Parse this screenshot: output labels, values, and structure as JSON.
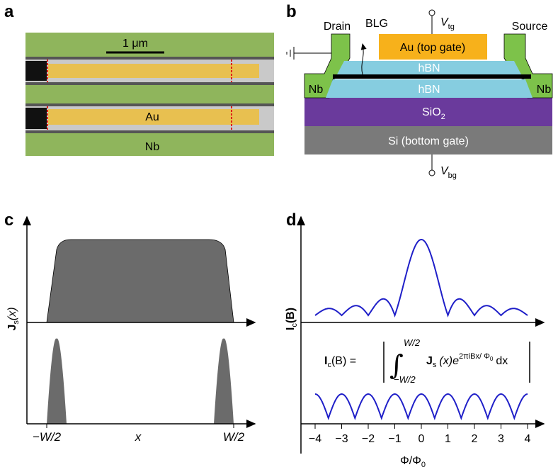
{
  "panels": {
    "a": {
      "label": "a",
      "scale_bar": "1 μm",
      "au": "Au",
      "nb": "Nb"
    },
    "b": {
      "label": "b",
      "drain": "Drain",
      "source": "Source",
      "blg": "BLG",
      "vtg": "V",
      "vtg_sub": "tg",
      "vbg": "V",
      "vbg_sub": "bg",
      "top_gate": "Au (top gate)",
      "hbn_top": "hBN",
      "hbn_bottom": "hBN",
      "nb_left": "Nb",
      "nb_right": "Nb",
      "sio2": "SiO",
      "sio2_sub": "2",
      "si": "Si (bottom gate)"
    },
    "c": {
      "label": "c",
      "ylabel": "J",
      "ylabel_sub": "s",
      "ylabel_arg": "(x)",
      "xticks": [
        "−W/2",
        "x",
        "W/2"
      ]
    },
    "d": {
      "label": "d",
      "ylabel": "I",
      "ylabel_sub": "c",
      "ylabel_arg": "(B)",
      "xlabel": "Φ/Φ",
      "xlabel_sub": "0",
      "xticks": [
        {
          "value": -4,
          "label": "−4"
        },
        {
          "value": -3,
          "label": "−3"
        },
        {
          "value": -2,
          "label": "−2"
        },
        {
          "value": -1,
          "label": "−1"
        },
        0,
        1,
        2,
        3,
        4
      ],
      "formula": {
        "lhs": "I",
        "lhs_sub": "c",
        "lhs_arg": "(B) =",
        "upper": "W/2",
        "lower": "−W/2",
        "integrand": "J",
        "integrand_sub": "s",
        "integrand_arg": "(x)e",
        "exponent": "2πiBx/ Φ",
        "exponent_sub": "0",
        "dx": "dx"
      }
    }
  }
}
